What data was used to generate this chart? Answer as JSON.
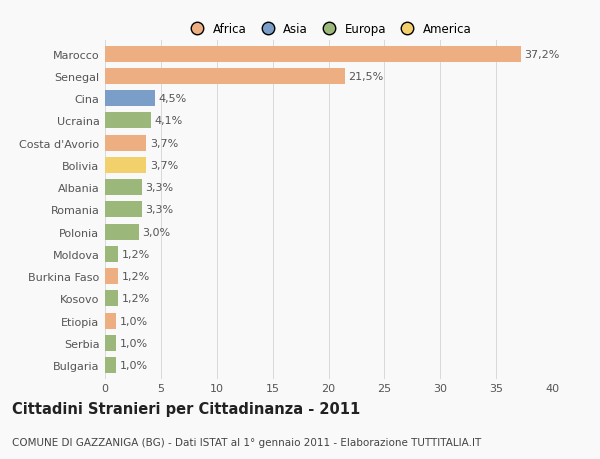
{
  "countries": [
    "Marocco",
    "Senegal",
    "Cina",
    "Ucraina",
    "Costa d'Avorio",
    "Bolivia",
    "Albania",
    "Romania",
    "Polonia",
    "Moldova",
    "Burkina Faso",
    "Kosovo",
    "Etiopia",
    "Serbia",
    "Bulgaria"
  ],
  "values": [
    37.2,
    21.5,
    4.5,
    4.1,
    3.7,
    3.7,
    3.3,
    3.3,
    3.0,
    1.2,
    1.2,
    1.2,
    1.0,
    1.0,
    1.0
  ],
  "labels": [
    "37,2%",
    "21,5%",
    "4,5%",
    "4,1%",
    "3,7%",
    "3,7%",
    "3,3%",
    "3,3%",
    "3,0%",
    "1,2%",
    "1,2%",
    "1,2%",
    "1,0%",
    "1,0%",
    "1,0%"
  ],
  "continents": [
    "Africa",
    "Africa",
    "Asia",
    "Europa",
    "Africa",
    "America",
    "Europa",
    "Europa",
    "Europa",
    "Europa",
    "Africa",
    "Europa",
    "Africa",
    "Europa",
    "Europa"
  ],
  "continent_colors": {
    "Africa": "#EDAF82",
    "Asia": "#7A9EC8",
    "Europa": "#9BB87A",
    "America": "#F2D06B"
  },
  "legend_items": [
    "Africa",
    "Asia",
    "Europa",
    "America"
  ],
  "legend_colors": [
    "#EDAF82",
    "#7A9EC8",
    "#9BB87A",
    "#F2D06B"
  ],
  "xlim": [
    0,
    40
  ],
  "xticks": [
    0,
    5,
    10,
    15,
    20,
    25,
    30,
    35,
    40
  ],
  "title": "Cittadini Stranieri per Cittadinanza - 2011",
  "subtitle": "COMUNE DI GAZZANIGA (BG) - Dati ISTAT al 1° gennaio 2011 - Elaborazione TUTTITALIA.IT",
  "background_color": "#f9f9f9",
  "grid_color": "#d8d8d8",
  "bar_height": 0.72,
  "label_fontsize": 8,
  "tick_fontsize": 8,
  "title_fontsize": 10.5,
  "subtitle_fontsize": 7.5
}
